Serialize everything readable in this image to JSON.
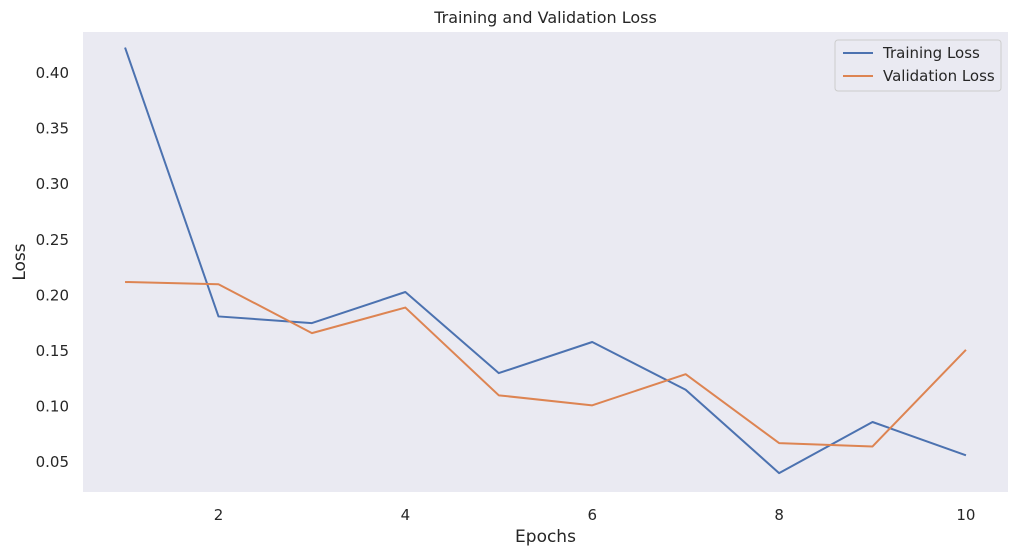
{
  "chart_data": {
    "type": "line",
    "title": "Training and Validation Loss",
    "xlabel": "Epochs",
    "ylabel": "Loss",
    "x": [
      1,
      2,
      3,
      4,
      5,
      6,
      7,
      8,
      9,
      10
    ],
    "xlim": [
      0.55,
      10.45
    ],
    "ylim": [
      0.023,
      0.437
    ],
    "xticks": [
      2,
      4,
      6,
      8,
      10
    ],
    "xtick_labels": [
      "2",
      "4",
      "6",
      "8",
      "10"
    ],
    "yticks": [
      0.05,
      0.1,
      0.15,
      0.2,
      0.25,
      0.3,
      0.35,
      0.4
    ],
    "ytick_labels": [
      "0.05",
      "0.10",
      "0.15",
      "0.20",
      "0.25",
      "0.30",
      "0.35",
      "0.40"
    ],
    "grid": false,
    "legend_position": "top-right",
    "series": [
      {
        "name": "Training Loss",
        "color": "#4c72b0",
        "values": [
          0.423,
          0.181,
          0.175,
          0.203,
          0.13,
          0.158,
          0.115,
          0.04,
          0.086,
          0.056
        ]
      },
      {
        "name": "Validation Loss",
        "color": "#dd8452",
        "values": [
          0.212,
          0.21,
          0.166,
          0.189,
          0.11,
          0.101,
          0.129,
          0.067,
          0.064,
          0.151
        ]
      }
    ]
  }
}
